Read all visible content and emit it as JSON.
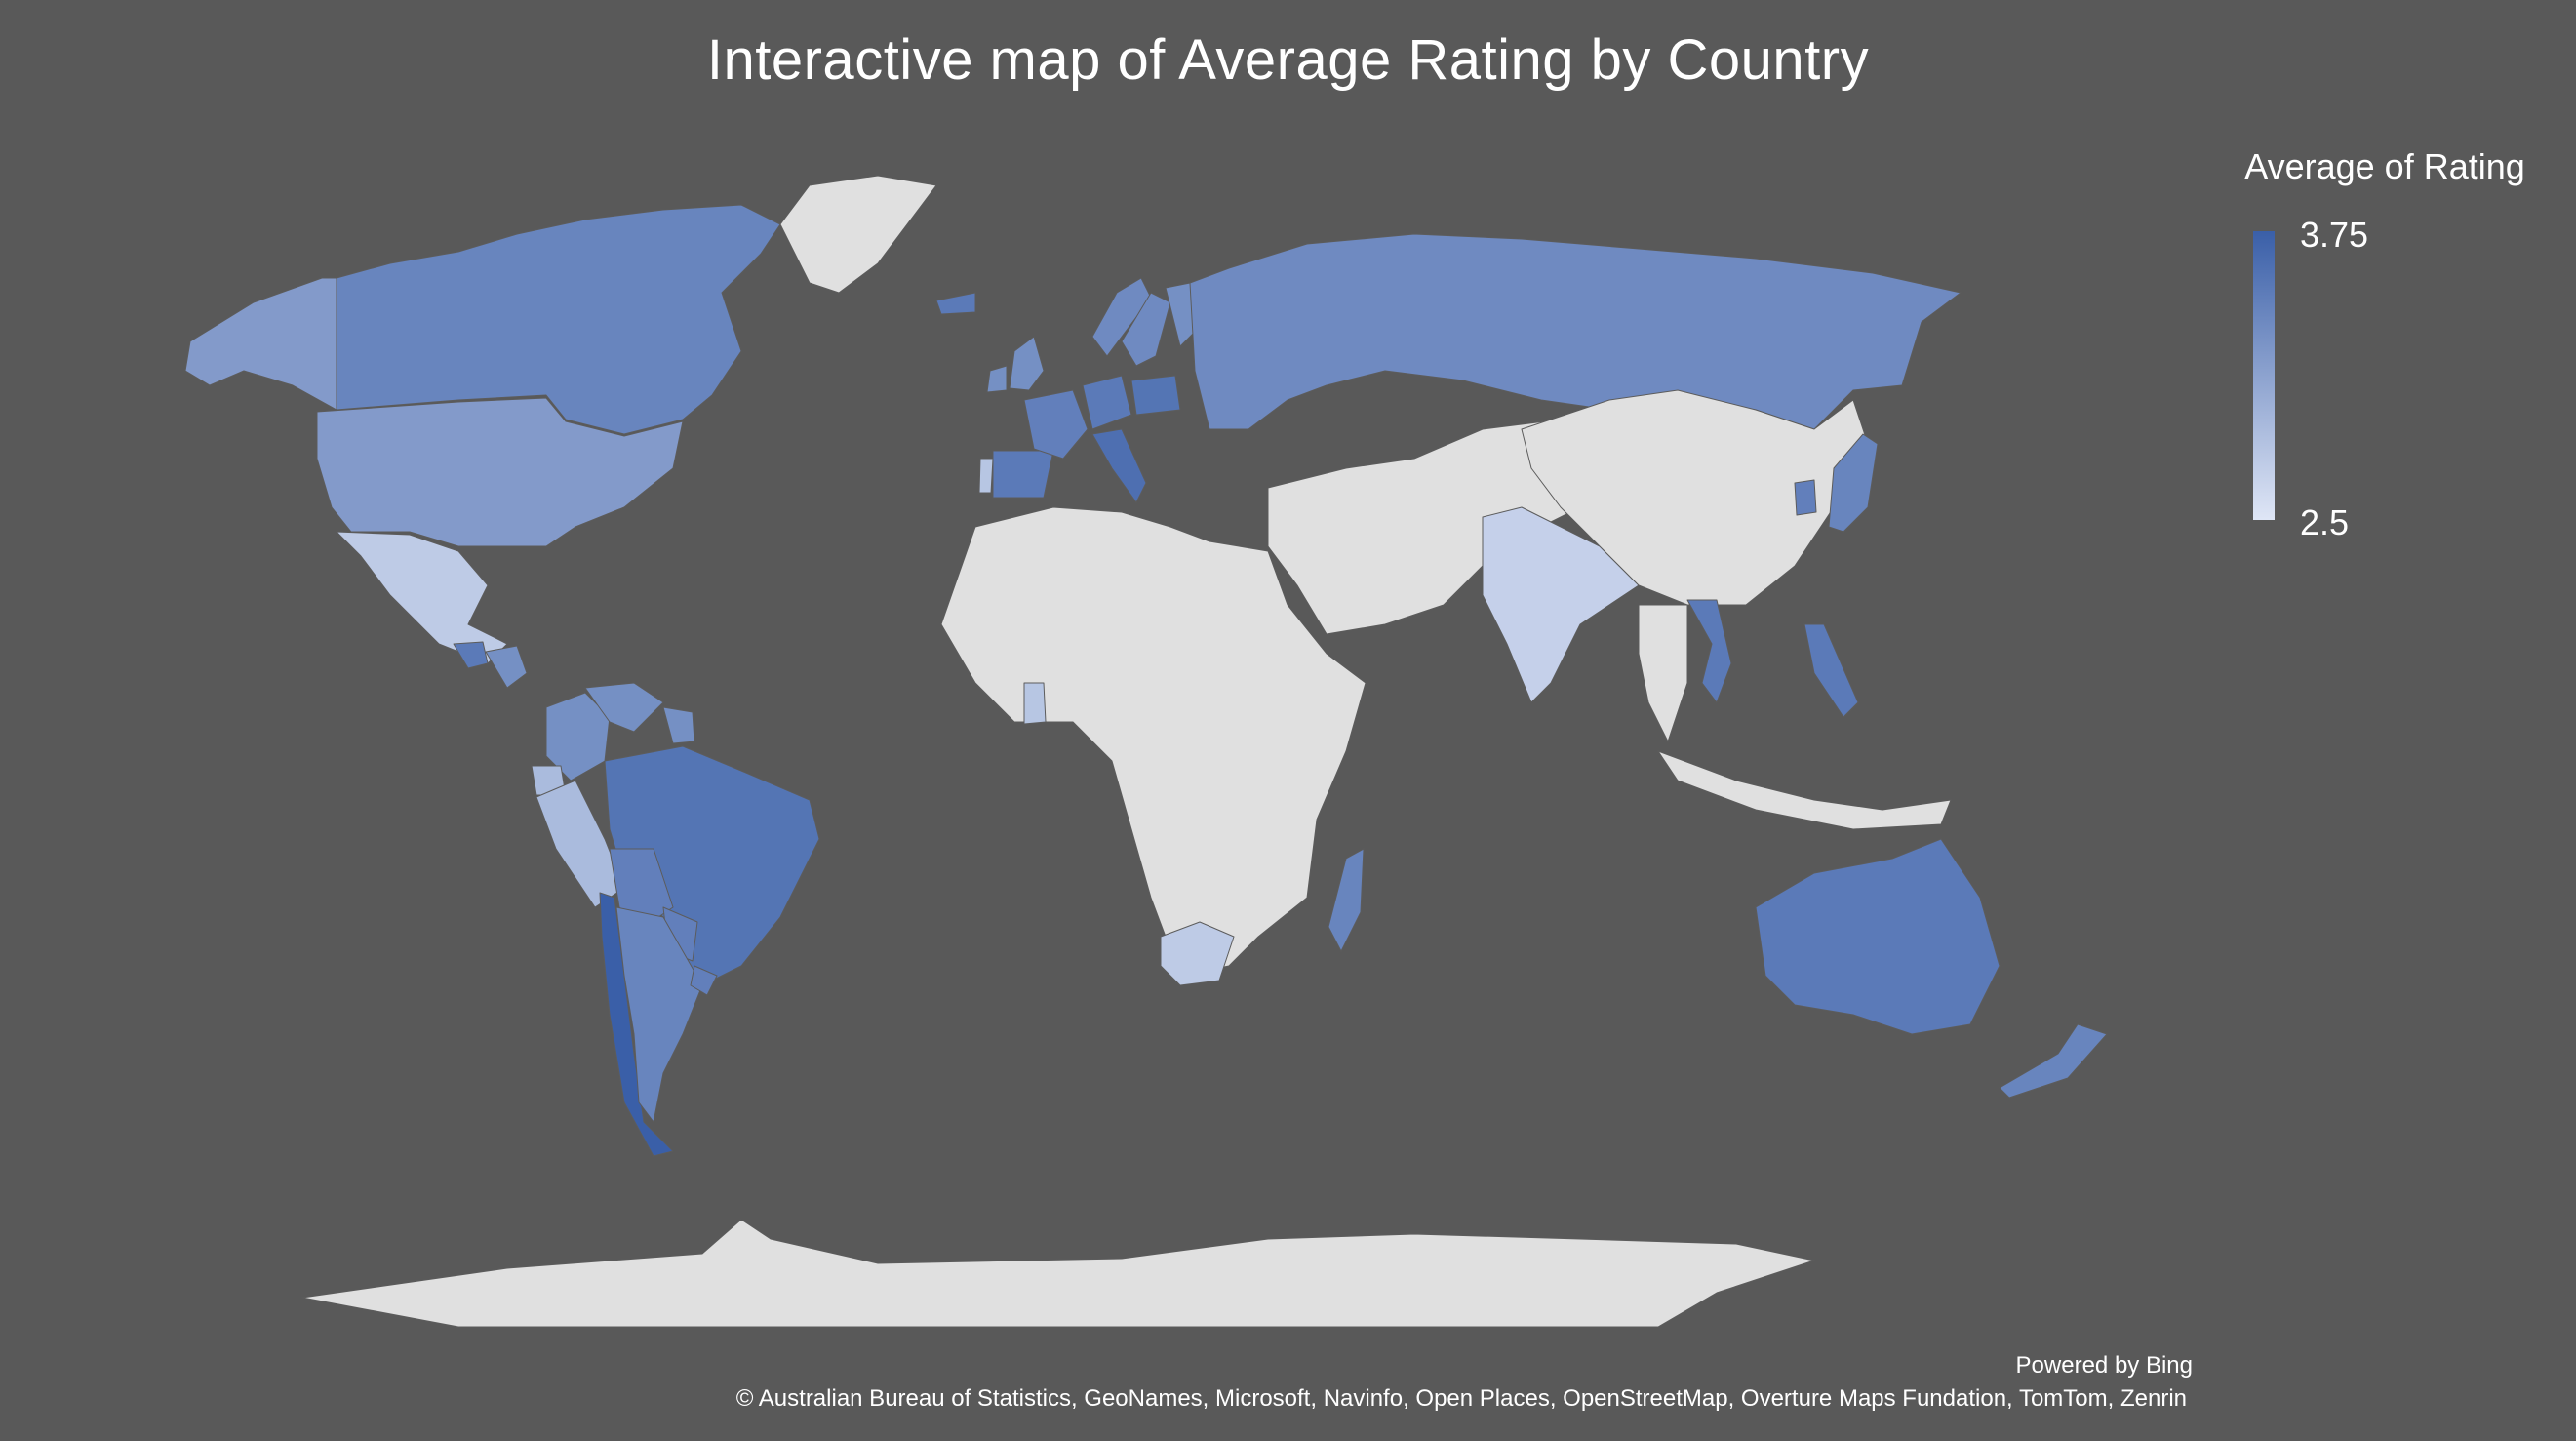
{
  "title": "Interactive map of Average Rating by Country",
  "legend": {
    "title": "Average of Rating",
    "max_label": "3.75",
    "min_label": "2.5",
    "max_value": 3.75,
    "min_value": 2.5,
    "color_low": "#dfe6f6",
    "color_high": "#3a5fa8"
  },
  "no_data_color": "#e0e0e0",
  "background_color": "#595959",
  "footer": {
    "powered_by": "Powered by Bing",
    "attribution": "© Australian Bureau of Statistics, GeoNames, Microsoft, Navinfo, Open Places, OpenStreetMap, Overture Maps Fundation, TomTom, Zenrin"
  },
  "regions": [
    {
      "name": "Canada",
      "rating": 3.4
    },
    {
      "name": "Alaska (United States)",
      "rating": 3.2
    },
    {
      "name": "United States",
      "rating": 3.2
    },
    {
      "name": "Greenland",
      "rating": null
    },
    {
      "name": "Mexico",
      "rating": 2.75
    },
    {
      "name": "Guatemala",
      "rating": 3.5
    },
    {
      "name": "Honduras",
      "rating": 3.3
    },
    {
      "name": "Colombia",
      "rating": 3.3
    },
    {
      "name": "Venezuela",
      "rating": 3.3
    },
    {
      "name": "Guyana",
      "rating": 3.3
    },
    {
      "name": "Ecuador",
      "rating": 2.9
    },
    {
      "name": "Peru",
      "rating": 2.9
    },
    {
      "name": "Brazil",
      "rating": 3.55
    },
    {
      "name": "Bolivia",
      "rating": 3.45
    },
    {
      "name": "Paraguay",
      "rating": 3.45
    },
    {
      "name": "Chile",
      "rating": 3.75
    },
    {
      "name": "Argentina",
      "rating": 3.4
    },
    {
      "name": "Uruguay",
      "rating": 3.45
    },
    {
      "name": "Iceland",
      "rating": 3.5
    },
    {
      "name": "United Kingdom",
      "rating": 3.3
    },
    {
      "name": "Ireland",
      "rating": 3.3
    },
    {
      "name": "Portugal",
      "rating": 2.8
    },
    {
      "name": "Spain",
      "rating": 3.5
    },
    {
      "name": "France",
      "rating": 3.45
    },
    {
      "name": "Norway",
      "rating": 3.35
    },
    {
      "name": "Sweden",
      "rating": 3.35
    },
    {
      "name": "Finland",
      "rating": 3.3
    },
    {
      "name": "Germany",
      "rating": 3.5
    },
    {
      "name": "Poland",
      "rating": 3.55
    },
    {
      "name": "Italy",
      "rating": 3.6
    },
    {
      "name": "Russia",
      "rating": 3.35
    },
    {
      "name": "Africa",
      "rating": null
    },
    {
      "name": "Ghana",
      "rating": 2.8
    },
    {
      "name": "South Africa",
      "rating": 2.75
    },
    {
      "name": "Madagascar",
      "rating": 3.4
    },
    {
      "name": "Middle East and Central Asia",
      "rating": null
    },
    {
      "name": "India",
      "rating": 2.7
    },
    {
      "name": "China",
      "rating": null
    },
    {
      "name": "Vietnam",
      "rating": 3.5
    },
    {
      "name": "Philippines",
      "rating": 3.5
    },
    {
      "name": "South Korea",
      "rating": 3.45
    },
    {
      "name": "Japan",
      "rating": 3.4
    },
    {
      "name": "Southeast Asia",
      "rating": null
    },
    {
      "name": "Indonesia",
      "rating": null
    },
    {
      "name": "Australia",
      "rating": 3.5
    },
    {
      "name": "New Zealand",
      "rating": 3.4
    },
    {
      "name": "Antarctica",
      "rating": null
    }
  ]
}
